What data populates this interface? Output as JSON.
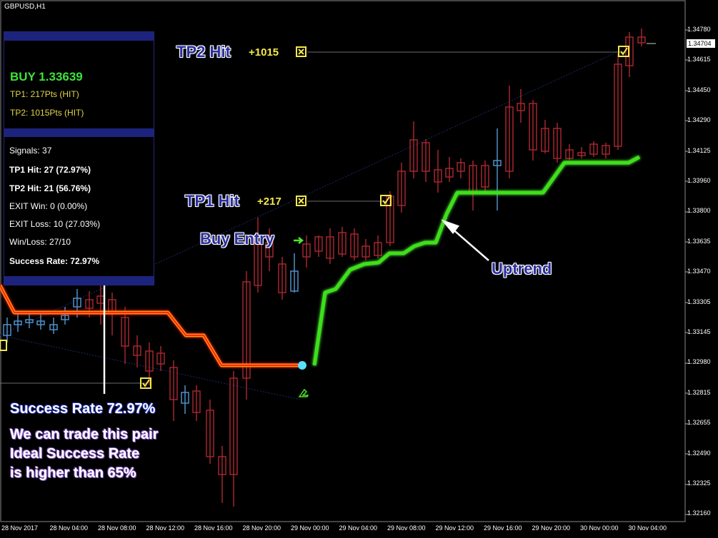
{
  "title": "GBPUSD,H1",
  "panel": {
    "buy_label": "BUY 1.33639",
    "tp1": "TP1: 217Pts (HIT)",
    "tp2": "TP2: 1015Pts (HIT)",
    "signals": "Signals: 37",
    "tp1_hit": "TP1 Hit: 27 (72.97%)",
    "tp2_hit": "TP2 Hit: 21 (56.76%)",
    "exit_win": "EXIT Win: 0 (0.00%)",
    "exit_loss": "EXIT Loss: 10 (27.03%)",
    "win_loss": "Win/Loss: 27/10",
    "success_rate": "Success Rate: 72.97%"
  },
  "annotations": {
    "tp2_hit": "TP2 Hit",
    "tp2_points": "+1015",
    "tp1_hit": "TP1 Hit",
    "tp1_points": "+217",
    "buy_entry": "Buy Entry",
    "uptrend": "Uptrend"
  },
  "note": {
    "line1": "Success Rate 72.97%",
    "line2": "We can trade this pair",
    "line3": "Ideal Success Rate",
    "line4": "is higher than 65%"
  },
  "price_axis": [
    "1.34780",
    "1.34615",
    "1.34450",
    "1.34290",
    "1.34125",
    "1.33960",
    "1.33800",
    "1.33635",
    "1.33470",
    "1.33305",
    "1.33145",
    "1.32980",
    "1.32815",
    "1.32655",
    "1.32490",
    "1.32325",
    "1.32160"
  ],
  "current_price": "1.34704",
  "time_axis": [
    "28 Nov 2017",
    "28 Nov 04:00",
    "28 Nov 08:00",
    "28 Nov 12:00",
    "28 Nov 16:00",
    "28 Nov 20:00",
    "29 Nov 00:00",
    "29 Nov 04:00",
    "29 Nov 08:00",
    "29 Nov 12:00",
    "29 Nov 16:00",
    "29 Nov 20:00",
    "30 Nov 00:00",
    "30 Nov 04:00"
  ],
  "colors": {
    "bull": "#4f8fc9",
    "bear": "#a3252f",
    "uptrend_line": "#4de62b",
    "downtrend_line": "#ff5a14",
    "panel_bar": "#1c237d",
    "marker": "#f5e84a"
  }
}
